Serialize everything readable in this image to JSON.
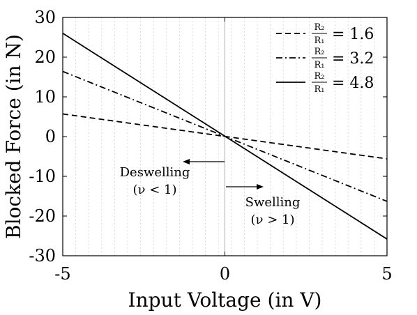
{
  "chart_data": {
    "type": "line",
    "xlabel": "Input Voltage (in V)",
    "ylabel": "Blocked Force (in N)",
    "xlim": [
      -5,
      5
    ],
    "ylim": [
      -30,
      30
    ],
    "xticks": [
      "-5",
      "0",
      "5"
    ],
    "yticks": [
      "30",
      "20",
      "10",
      "0",
      "-10",
      "-20",
      "-30"
    ],
    "grid": "vertical minor dotted",
    "legend_position": "top-right",
    "series": [
      {
        "name": "R2/R1 = 1.6",
        "legend": {
          "num": "R₂",
          "den": "R₁",
          "value": "= 1.6"
        },
        "style": "dashed",
        "x": [
          -5,
          5
        ],
        "y": [
          5.7,
          -5.6
        ]
      },
      {
        "name": "R2/R1 = 3.2",
        "legend": {
          "num": "R₂",
          "den": "R₁",
          "value": "= 3.2"
        },
        "style": "dash-dot",
        "x": [
          -5,
          5
        ],
        "y": [
          16.4,
          -16.3
        ]
      },
      {
        "name": "R2/R1 = 4.8",
        "legend": {
          "num": "R₂",
          "den": "R₁",
          "value": "= 4.8"
        },
        "style": "solid",
        "x": [
          -5,
          5
        ],
        "y": [
          26.0,
          -25.8
        ]
      }
    ],
    "annotations": [
      {
        "text": "Deswelling",
        "sub": "(ν < 1)",
        "arrow": "left"
      },
      {
        "text": "Swelling",
        "sub": "(ν > 1)",
        "arrow": "right"
      }
    ]
  }
}
